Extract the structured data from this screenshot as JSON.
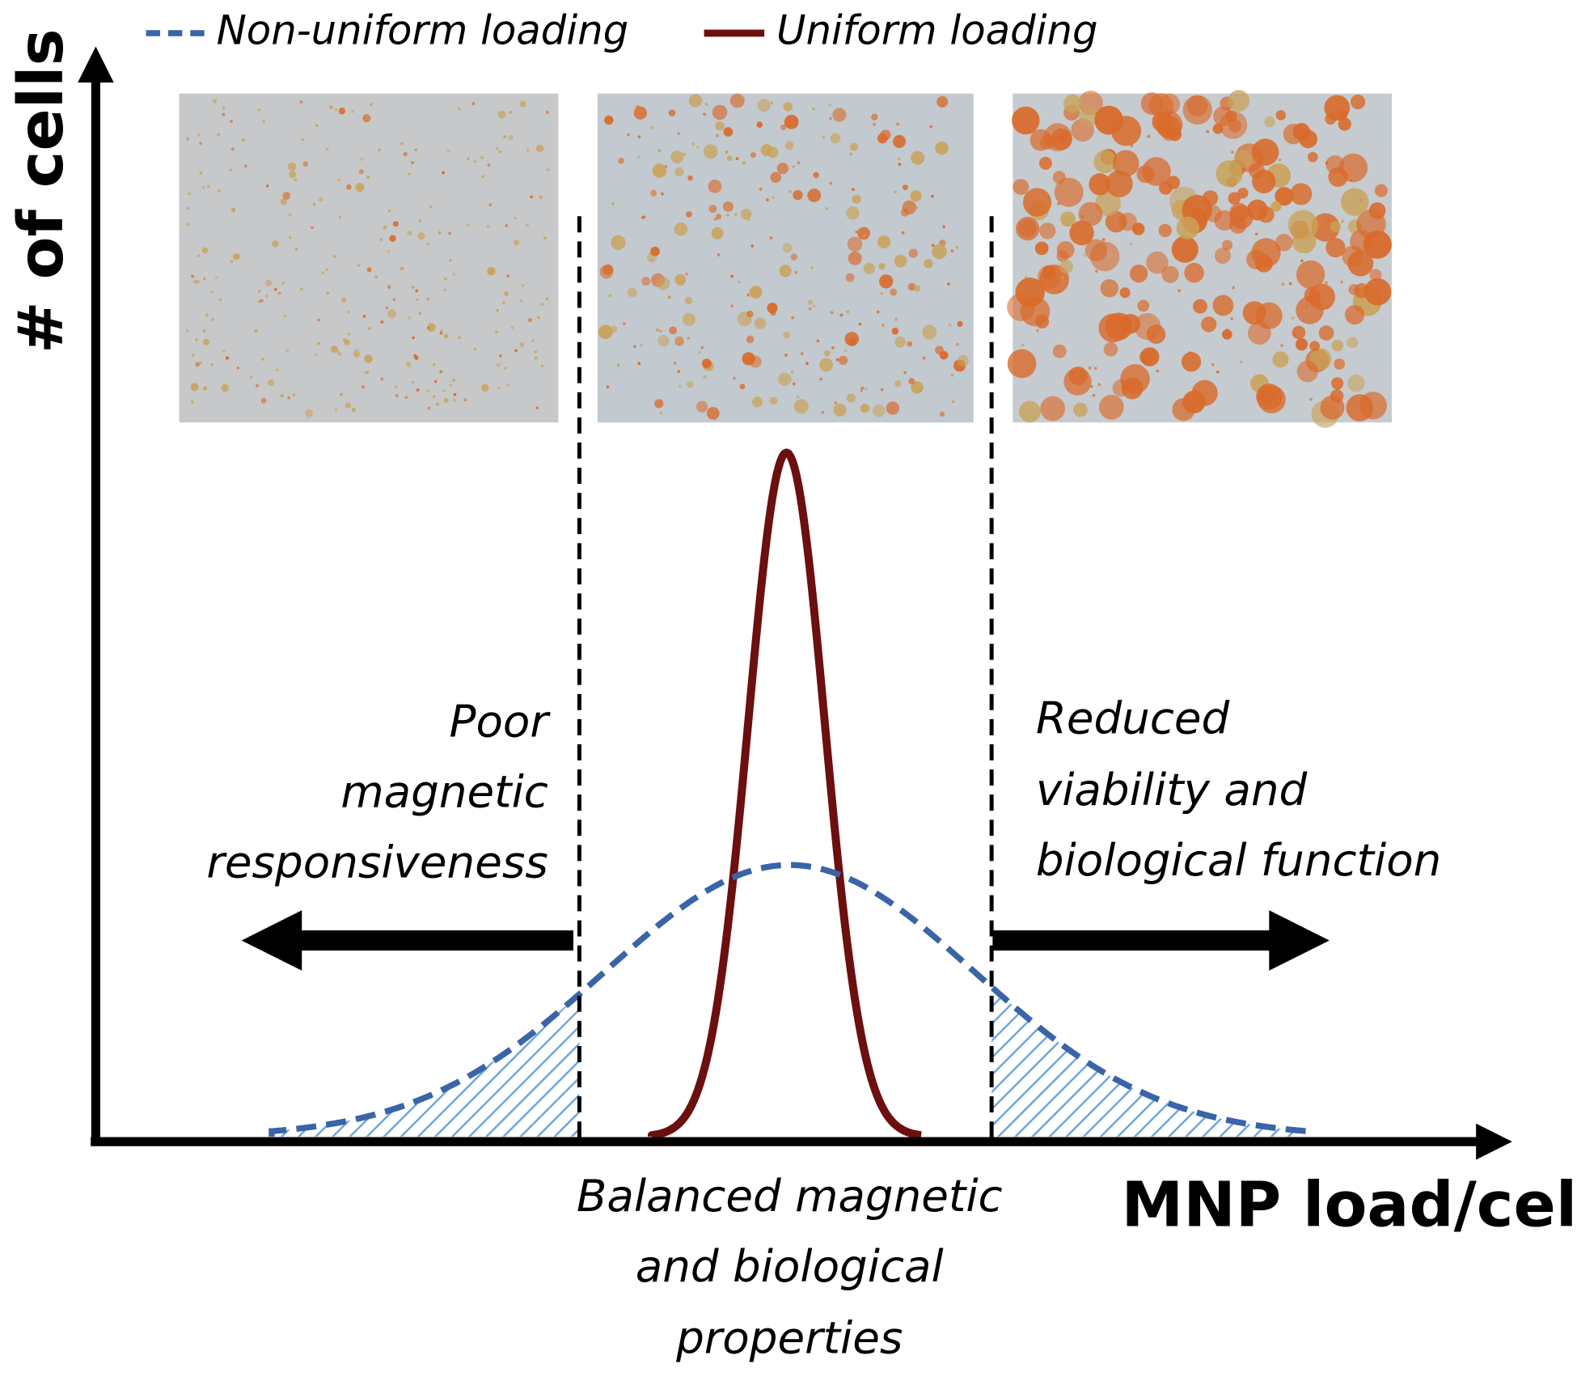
{
  "legend": [
    "Non-uniform loading",
    "Uniform loading"
  ],
  "y_axis_label": "# of cells",
  "x_axis_label": "MNP load/cell",
  "left_note": [
    "Poor",
    "magnetic",
    "responsiveness"
  ],
  "right_note": [
    "Reduced",
    "viability and",
    "biological function"
  ],
  "center_note": [
    "Balanced magnetic",
    "and biological",
    "properties"
  ]
}
